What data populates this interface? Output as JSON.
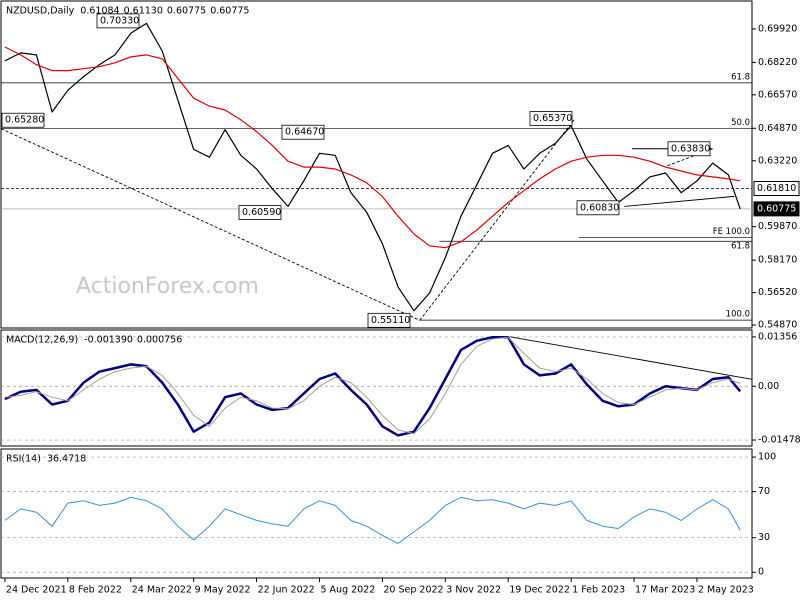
{
  "chart_data": [
    {
      "type": "line",
      "title": "NZDUSD,Daily",
      "readout": {
        "values": [
          0.61084,
          0.6113,
          0.60775,
          0.60775
        ],
        "value_labels": [
          "0.61084",
          "0.61130",
          "0.60775",
          "0.60775"
        ]
      },
      "watermark": "ActionForex.com",
      "x": [
        0,
        8,
        16,
        24,
        32,
        40,
        48,
        56,
        64,
        72,
        80,
        88,
        96,
        104,
        112,
        120,
        128,
        136,
        144,
        152,
        160,
        168,
        176,
        184,
        192,
        200,
        208,
        216,
        224,
        232,
        240,
        248,
        256,
        264,
        272,
        280,
        288,
        296,
        304,
        312,
        320,
        328,
        336,
        344,
        352,
        360,
        368,
        374
      ],
      "xlim": [
        -2,
        380
      ],
      "ylim": [
        0.5472,
        0.7134
      ],
      "yticks": [
        {
          "value": 0.6992,
          "label": "0.69920"
        },
        {
          "value": 0.6822,
          "label": "0.68220"
        },
        {
          "value": 0.6657,
          "label": "0.66570"
        },
        {
          "value": 0.6487,
          "label": "0.64870"
        },
        {
          "value": 0.6322,
          "label": "0.63220"
        },
        {
          "value": 0.5987,
          "label": "0.59870"
        },
        {
          "value": 0.5817,
          "label": "0.58170"
        },
        {
          "value": 0.5652,
          "label": "0.56520"
        },
        {
          "value": 0.5487,
          "label": "0.54870"
        }
      ],
      "series": [
        {
          "color": "#000000",
          "values": [
            0.683,
            0.687,
            0.686,
            0.657,
            0.668,
            0.675,
            0.681,
            0.686,
            0.697,
            0.702,
            0.688,
            0.663,
            0.638,
            0.634,
            0.648,
            0.635,
            0.628,
            0.618,
            0.609,
            0.622,
            0.636,
            0.635,
            0.616,
            0.606,
            0.59,
            0.568,
            0.556,
            0.565,
            0.583,
            0.604,
            0.62,
            0.636,
            0.64,
            0.628,
            0.636,
            0.641,
            0.65,
            0.633,
            0.622,
            0.611,
            0.617,
            0.624,
            0.626,
            0.616,
            0.622,
            0.631,
            0.625,
            0.60775
          ]
        },
        {
          "color": "#e00000",
          "values": [
            0.69,
            0.686,
            0.681,
            0.678,
            0.678,
            0.679,
            0.68,
            0.682,
            0.685,
            0.686,
            0.684,
            0.674,
            0.664,
            0.66,
            0.658,
            0.653,
            0.647,
            0.64,
            0.632,
            0.629,
            0.629,
            0.628,
            0.625,
            0.621,
            0.614,
            0.604,
            0.595,
            0.589,
            0.588,
            0.591,
            0.597,
            0.604,
            0.611,
            0.617,
            0.623,
            0.628,
            0.632,
            0.634,
            0.635,
            0.635,
            0.634,
            0.632,
            0.629,
            0.627,
            0.625,
            0.624,
            0.623,
            0.622
          ]
        }
      ],
      "levels": [
        {
          "label": "61.8",
          "value": 0.6718,
          "from": -2
        },
        {
          "label": "50.0",
          "value": 0.6487,
          "from": -2
        },
        {
          "label": "FE 100.0",
          "value": 0.5933,
          "from": 292
        },
        {
          "label": "61.8",
          "value": 0.5913,
          "from": 221
        },
        {
          "label": "100.0",
          "value": 0.5512,
          "from": 211
        }
      ],
      "markers": [
        {
          "value": 0.6181,
          "label": "0.61810"
        },
        {
          "value": 0.60775,
          "label": "0.60775"
        }
      ],
      "annotations": [
        {
          "value": 0.7033,
          "label": "0.70330"
        },
        {
          "value": 0.6528,
          "label": "0.65280"
        },
        {
          "value": 0.6467,
          "label": "0.64670"
        },
        {
          "value": 0.6059,
          "label": "0.60590"
        },
        {
          "value": 0.5511,
          "label": "0.55110"
        },
        {
          "value": 0.6537,
          "label": "0.65370"
        },
        {
          "value": 0.6083,
          "label": "0.60830"
        },
        {
          "value": 0.6383,
          "label": "0.63830"
        }
      ],
      "trendlines": [
        {
          "x": [
            -2,
            211
          ],
          "y": [
            0.6485,
            0.5511
          ],
          "style": "dashed"
        },
        {
          "x": [
            211,
            290
          ],
          "y": [
            0.5511,
            0.6537
          ],
          "style": "dashed"
        },
        {
          "x": [
            319,
            360
          ],
          "y": [
            0.6383,
            0.6383
          ],
          "style": "solid"
        },
        {
          "x": [
            315,
            371
          ],
          "y": [
            0.609,
            0.6141
          ],
          "style": "solid"
        },
        {
          "x": [
            337,
            360
          ],
          "y": [
            0.6297,
            0.6383
          ],
          "style": "dashed"
        }
      ]
    },
    {
      "type": "line",
      "title": "MACD(12,26,9)",
      "readout": {
        "values": [
          -0.00139,
          0.000756
        ],
        "value_labels": [
          "-0.001390",
          "0.000756"
        ]
      },
      "x": [
        0,
        8,
        16,
        24,
        32,
        40,
        48,
        56,
        64,
        72,
        80,
        88,
        96,
        104,
        112,
        120,
        128,
        136,
        144,
        152,
        160,
        168,
        176,
        184,
        192,
        200,
        208,
        216,
        224,
        232,
        240,
        248,
        256,
        264,
        272,
        280,
        288,
        296,
        304,
        312,
        320,
        328,
        336,
        344,
        352,
        360,
        368,
        374
      ],
      "xlim": [
        -2,
        380
      ],
      "ylim": [
        -0.01642,
        0.01547
      ],
      "yticks": [
        0.01356,
        {
          "value": 0,
          "label": "0.00"
        },
        -0.014783
      ],
      "grid": true,
      "series": [
        {
          "color": "#000080",
          "width": 2.5,
          "values": [
            -0.0035,
            -0.0015,
            -0.001,
            -0.005,
            -0.004,
            0.001,
            0.004,
            0.005,
            0.006,
            0.0055,
            0.001,
            -0.005,
            -0.0125,
            -0.01,
            -0.003,
            -0.002,
            -0.005,
            -0.0065,
            -0.006,
            -0.002,
            0.002,
            0.0035,
            -0.001,
            -0.005,
            -0.011,
            -0.0135,
            -0.0125,
            -0.006,
            0.002,
            0.01,
            0.0125,
            0.0135,
            0.0135,
            0.006,
            0.003,
            0.0035,
            0.006,
            0.0005,
            -0.004,
            -0.0055,
            -0.005,
            -0.002,
            0,
            -0.0005,
            -0.001,
            0.002,
            0.0025,
            -0.00139
          ]
        },
        {
          "color": "#a0a0a0",
          "width": 1,
          "values": [
            -0.003,
            -0.0025,
            -0.0015,
            -0.003,
            -0.004,
            -0.001,
            0.002,
            0.004,
            0.005,
            0.0055,
            0.003,
            -0.002,
            -0.008,
            -0.011,
            -0.006,
            -0.003,
            -0.004,
            -0.006,
            -0.0062,
            -0.004,
            0,
            0.0025,
            0.001,
            -0.003,
            -0.008,
            -0.012,
            -0.013,
            -0.009,
            -0.002,
            0.006,
            0.011,
            0.013,
            0.0135,
            0.009,
            0.005,
            0.004,
            0.005,
            0.002,
            -0.002,
            -0.0045,
            -0.005,
            -0.003,
            -0.001,
            -0.0005,
            -0.001,
            0.001,
            0.002,
            0.000756
          ]
        }
      ],
      "trendlines": [
        {
          "x": [
            257,
            380
          ],
          "y": [
            0.0136,
            0.0019
          ],
          "style": "solid"
        }
      ]
    },
    {
      "type": "line",
      "title": "RSI(14)",
      "readout": {
        "values": [
          36.4718
        ]
      },
      "x": [
        0,
        8,
        16,
        24,
        32,
        40,
        48,
        56,
        64,
        72,
        80,
        88,
        96,
        104,
        112,
        120,
        128,
        136,
        144,
        152,
        160,
        168,
        176,
        184,
        192,
        200,
        208,
        216,
        224,
        232,
        240,
        248,
        256,
        264,
        272,
        280,
        288,
        296,
        304,
        312,
        320,
        328,
        336,
        344,
        352,
        360,
        368,
        374
      ],
      "xlim": [
        -2,
        380
      ],
      "ylim": [
        -5,
        107
      ],
      "yticks": [
        100,
        70,
        30,
        0
      ],
      "grid": true,
      "xticks": [
        {
          "value": 0,
          "label": "24 Dec 2021"
        },
        {
          "value": 32,
          "label": "8 Feb 2022"
        },
        {
          "value": 64,
          "label": "24 Mar 2022"
        },
        {
          "value": 96,
          "label": "9 May 2022"
        },
        {
          "value": 128,
          "label": "22 Jun 2022"
        },
        {
          "value": 160,
          "label": "5 Aug 2022"
        },
        {
          "value": 192,
          "label": "20 Sep 2022"
        },
        {
          "value": 224,
          "label": "3 Nov 2022"
        },
        {
          "value": 256,
          "label": "19 Dec 2022"
        },
        {
          "value": 288,
          "label": "1 Feb 2023"
        },
        {
          "value": 320,
          "label": "17 Mar 2023"
        },
        {
          "value": 352,
          "label": "2 May 2023"
        }
      ],
      "series": [
        {
          "color": "#3a8fd8",
          "width": 1,
          "values": [
            45,
            55,
            52,
            40,
            60,
            62,
            58,
            60,
            65,
            62,
            55,
            40,
            28,
            40,
            55,
            50,
            45,
            42,
            40,
            55,
            62,
            58,
            45,
            40,
            32,
            25,
            35,
            45,
            58,
            65,
            62,
            63,
            60,
            55,
            60,
            58,
            62,
            45,
            40,
            38,
            48,
            55,
            52,
            45,
            55,
            63,
            55,
            36.4718
          ]
        }
      ]
    }
  ]
}
